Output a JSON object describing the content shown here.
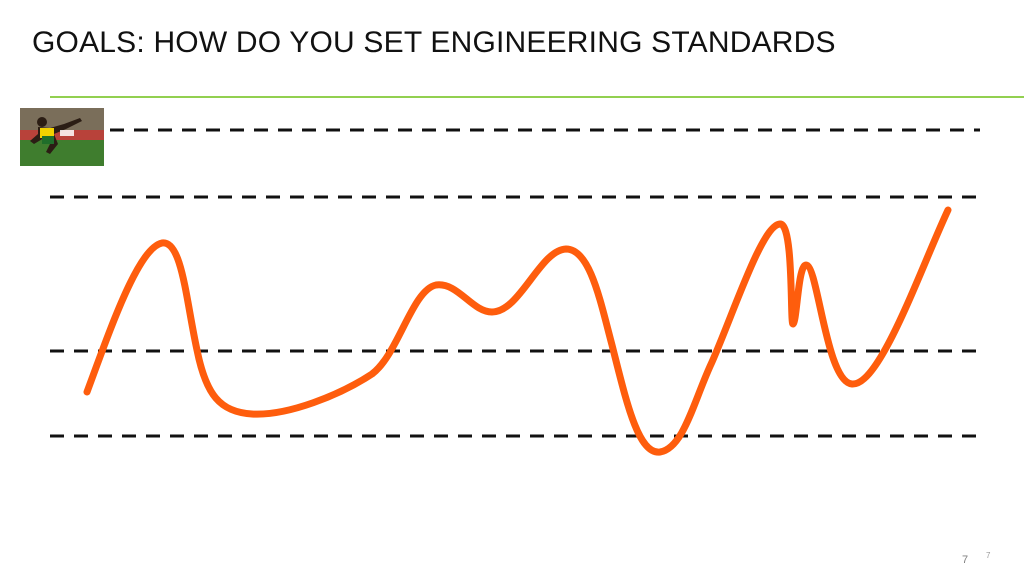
{
  "slide": {
    "title": "GOALS: HOW DO YOU SET ENGINEERING STANDARDS",
    "page_number": "7",
    "page_number_small": "7"
  },
  "colors": {
    "title_rule": "#92d050",
    "curve": "#fe5d0d",
    "dash": "#111111"
  },
  "thumbnail": {
    "icon": "sprinter-photo"
  }
}
